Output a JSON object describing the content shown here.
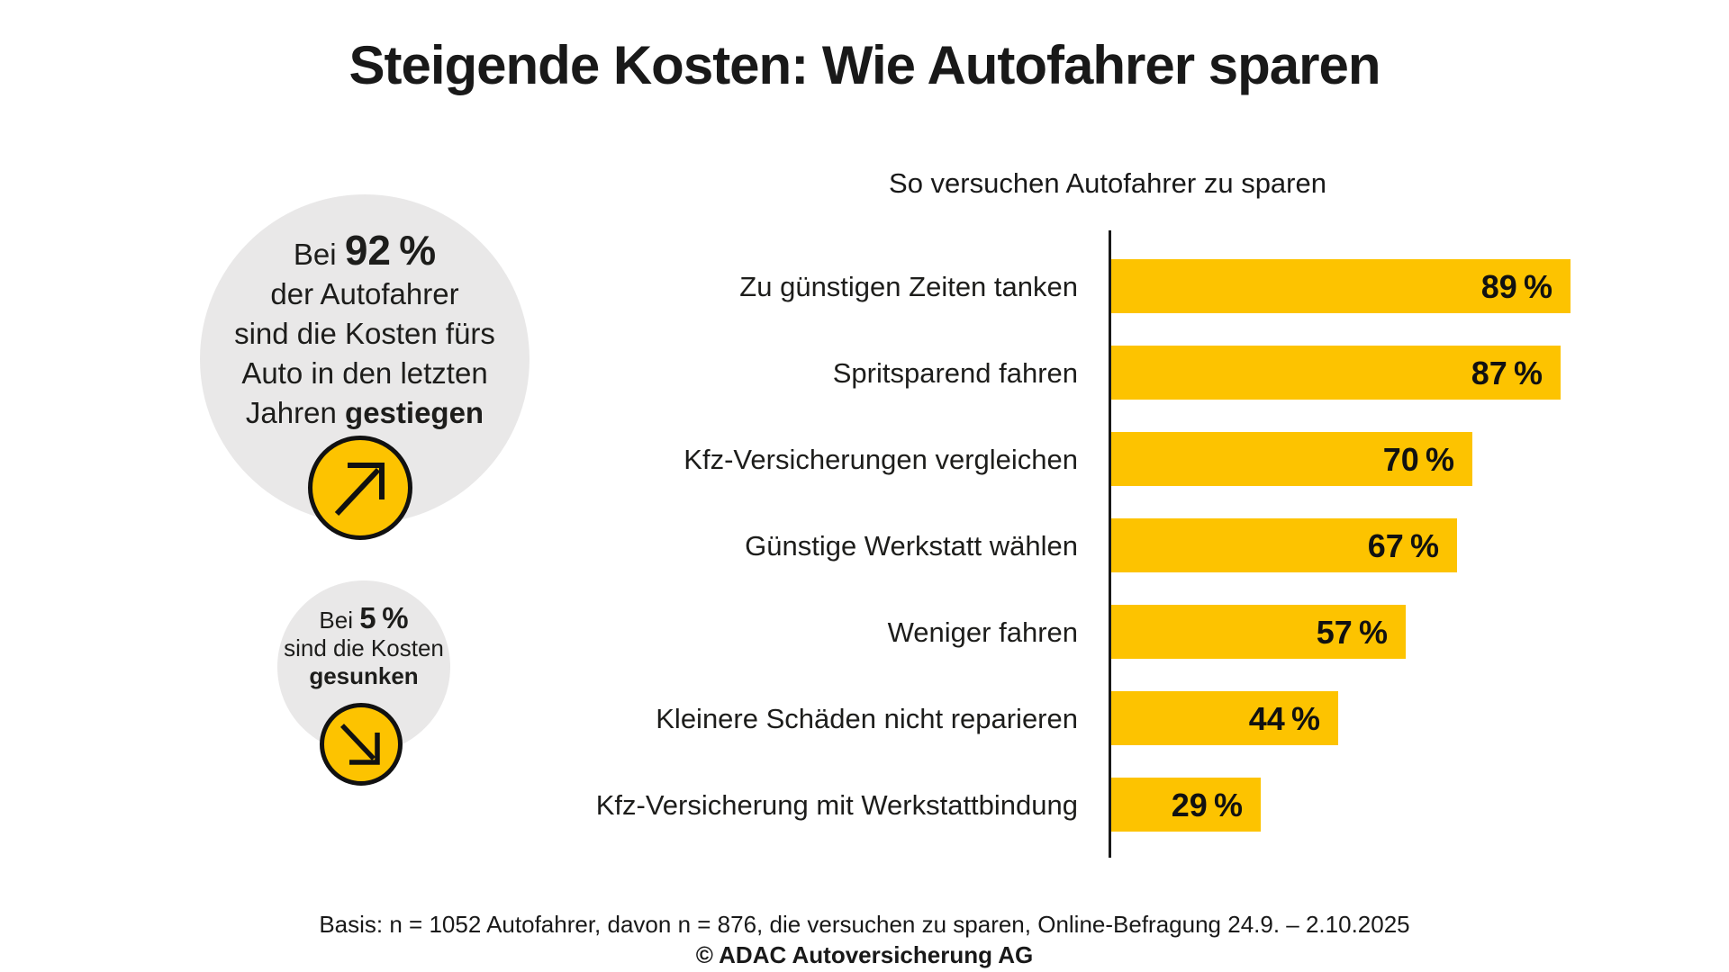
{
  "title": "Steigende Kosten: Wie Autofahrer sparen",
  "highlight_up": {
    "prefix": "Bei",
    "value": "92 %",
    "line2": "der Autofahrer",
    "line3": "sind die Kosten fürs",
    "line4": "Auto in den letzten",
    "last_prefix": "Jahren",
    "last_bold": "gestiegen",
    "icon": "arrow-up-right"
  },
  "highlight_down": {
    "prefix": "Bei",
    "value": "5 %",
    "line2": "sind die Kosten",
    "line3_bold": "gesunken",
    "icon": "arrow-down-right"
  },
  "chart_data": {
    "type": "bar",
    "orientation": "horizontal",
    "title": "So versuchen Autofahrer zu sparen",
    "categories": [
      "Zu günstigen Zeiten tanken",
      "Spritsparend fahren",
      "Kfz-Versicherungen vergleichen",
      "Günstige Werkstatt wählen",
      "Weniger fahren",
      "Kleinere Schäden nicht reparieren",
      "Kfz-Versicherung mit Werkstattbindung"
    ],
    "values": [
      89,
      87,
      70,
      67,
      57,
      44,
      29
    ],
    "unit": "%",
    "xlim": [
      0,
      100
    ],
    "bar_color": "#fdc300",
    "grid": false,
    "legend": false,
    "value_labels": "inside-end"
  },
  "footer": {
    "basis": "Basis: n = 1052 Autofahrer, davon n = 876, die versuchen zu sparen, Online-Befragung 24.9. – 2.10.2025",
    "copyright": "© ADAC Autoversicherung AG"
  }
}
